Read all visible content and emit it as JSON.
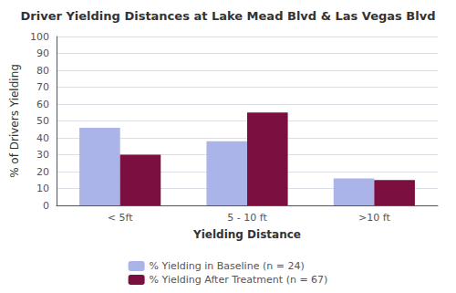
{
  "chart_data": {
    "type": "bar",
    "title": "Driver Yielding Distances at Lake Mead Blvd & Las Vegas Blvd",
    "xlabel": "Yielding Distance",
    "ylabel": "% of Drivers Yielding",
    "categories": [
      "< 5ft",
      "5 - 10 ft",
      ">10 ft"
    ],
    "series": [
      {
        "name": "% Yielding in Baseline (n = 24)",
        "color": "#aab4e8",
        "values": [
          46,
          38,
          16
        ]
      },
      {
        "name": "% Yielding After Treatment (n = 67)",
        "color": "#7b1040",
        "values": [
          30,
          55,
          15
        ]
      }
    ],
    "ylim": [
      0,
      100
    ],
    "yticks": [
      0,
      10,
      20,
      30,
      40,
      50,
      60,
      70,
      80,
      90,
      100
    ],
    "grid": true,
    "legend": "bottom"
  }
}
